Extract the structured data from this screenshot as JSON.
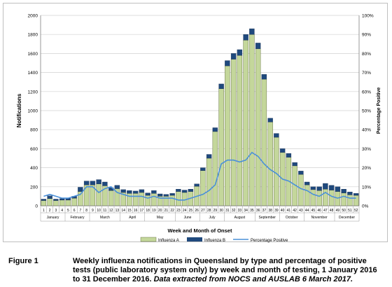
{
  "chart_data": {
    "type": "bar",
    "stacked": true,
    "xlabel": "Week and Month of Onset",
    "ylabel": "Notifications",
    "y2label": "Percentage Positive",
    "ylim": [
      0,
      2000
    ],
    "y2lim": [
      0,
      100
    ],
    "yticks": [
      0,
      200,
      400,
      600,
      800,
      1000,
      1200,
      1400,
      1600,
      1800,
      2000
    ],
    "y2ticks": [
      "0%",
      "10%",
      "20%",
      "30%",
      "40%",
      "50%",
      "60%",
      "70%",
      "80%",
      "90%",
      "100%"
    ],
    "grid": true,
    "legend_position": "bottom",
    "categories": [
      "1",
      "2",
      "3",
      "4",
      "5",
      "6",
      "7",
      "8",
      "9",
      "10",
      "11",
      "12",
      "13",
      "14",
      "15",
      "16",
      "17",
      "18",
      "19",
      "20",
      "21",
      "22",
      "23",
      "24",
      "25",
      "26",
      "27",
      "28",
      "29",
      "30",
      "31",
      "32",
      "33",
      "34",
      "35",
      "36",
      "37",
      "38",
      "39",
      "40",
      "41",
      "42",
      "43",
      "44",
      "45",
      "46",
      "47",
      "48",
      "49",
      "50",
      "51",
      "52"
    ],
    "months": [
      {
        "name": "January",
        "start": 1,
        "end": 4
      },
      {
        "name": "February",
        "start": 5,
        "end": 8
      },
      {
        "name": "March",
        "start": 9,
        "end": 13
      },
      {
        "name": "April",
        "start": 14,
        "end": 17
      },
      {
        "name": "May",
        "start": 18,
        "end": 22
      },
      {
        "name": "June",
        "start": 23,
        "end": 26
      },
      {
        "name": "July",
        "start": 27,
        "end": 30
      },
      {
        "name": "August",
        "start": 31,
        "end": 35
      },
      {
        "name": "September",
        "start": 36,
        "end": 39
      },
      {
        "name": "October",
        "start": 40,
        "end": 43
      },
      {
        "name": "November",
        "start": 44,
        "end": 48
      },
      {
        "name": "December",
        "start": 49,
        "end": 52
      }
    ],
    "series": [
      {
        "name": "Influenza A",
        "color": "#c4d79b",
        "values": [
          55,
          75,
          55,
          60,
          60,
          80,
          150,
          220,
          220,
          230,
          210,
          160,
          180,
          140,
          130,
          130,
          140,
          110,
          130,
          100,
          100,
          110,
          150,
          140,
          150,
          205,
          370,
          500,
          780,
          1230,
          1470,
          1540,
          1580,
          1740,
          1800,
          1650,
          1330,
          880,
          720,
          560,
          510,
          420,
          330,
          220,
          170,
          160,
          175,
          165,
          150,
          135,
          115,
          110
        ]
      },
      {
        "name": "Influenza B",
        "color": "#1f497d",
        "values": [
          15,
          30,
          15,
          15,
          20,
          20,
          45,
          40,
          40,
          45,
          40,
          30,
          35,
          30,
          30,
          25,
          30,
          25,
          30,
          25,
          20,
          20,
          25,
          25,
          25,
          25,
          30,
          40,
          40,
          50,
          55,
          60,
          60,
          60,
          60,
          60,
          50,
          40,
          40,
          40,
          40,
          35,
          35,
          30,
          30,
          40,
          60,
          50,
          50,
          40,
          30,
          20
        ]
      },
      {
        "name": "Percentage Positive",
        "color": "#4a90d9",
        "axis": "right",
        "unit": "%",
        "values": [
          5,
          6,
          5,
          4,
          4,
          5,
          6,
          10,
          10,
          7,
          9,
          10,
          7,
          6,
          5,
          5,
          5,
          4,
          5,
          4,
          4,
          4,
          3,
          3,
          4,
          5,
          6,
          8,
          11,
          22,
          24,
          24,
          23,
          24,
          28,
          26,
          22,
          19,
          17,
          14,
          13,
          11,
          9,
          8,
          6,
          5,
          7,
          5,
          4,
          5,
          4,
          4
        ]
      }
    ]
  },
  "caption": {
    "label": "Figure 1",
    "text": "Weekly influenza notifications in Queensland by type and percentage of positive tests (public laboratory system only) by week and month of testing, 1 January 2016 to 31 December 2016.",
    "source": "Data extracted from NOCS and AUSLAB 6 March 2017."
  }
}
